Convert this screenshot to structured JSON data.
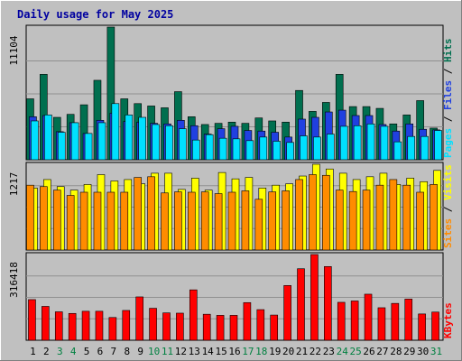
{
  "chart_data": {
    "type": "bar",
    "title": "Daily usage for May 2025",
    "categories": [
      "1",
      "2",
      "3",
      "4",
      "5",
      "6",
      "7",
      "8",
      "9",
      "10",
      "11",
      "12",
      "13",
      "14",
      "15",
      "16",
      "17",
      "18",
      "19",
      "20",
      "21",
      "22",
      "23",
      "24",
      "25",
      "26",
      "27",
      "28",
      "29",
      "30",
      "31"
    ],
    "weekend_days": [
      "3",
      "4",
      "10",
      "11",
      "17",
      "18",
      "24",
      "25",
      "31"
    ],
    "panels": [
      {
        "axis_label": "11104",
        "ylim": [
          0,
          11104
        ],
        "series": [
          {
            "name": "Hits",
            "color": "#006f4f",
            "values": [
              5100,
              7150,
              3550,
              3800,
              4600,
              6650,
              11104,
              5100,
              4700,
              4500,
              4350,
              5700,
              3600,
              2950,
              3050,
              3150,
              3050,
              3500,
              3250,
              3150,
              5800,
              4050,
              4800,
              7150,
              4450,
              4450,
              4300,
              3000,
              3750,
              4950,
              2650
            ]
          },
          {
            "name": "Files",
            "color": "#2040e0",
            "values": [
              3600,
              3700,
              2350,
              3100,
              2200,
              3300,
              3900,
              3200,
              3150,
              3050,
              3000,
              3300,
              2850,
              2150,
              2600,
              2800,
              2450,
              2400,
              2300,
              1900,
              3400,
              3550,
              4000,
              4150,
              3700,
              3700,
              2950,
              2400,
              3000,
              2550,
              2500
            ]
          },
          {
            "name": "Pages",
            "color": "#00e0ff",
            "values": [
              3250,
              3750,
              2300,
              3100,
              2200,
              3100,
              4700,
              3750,
              3550,
              2950,
              2850,
              2600,
              1650,
              2100,
              1800,
              1750,
              1600,
              1900,
              1550,
              1450,
              2000,
              1900,
              2150,
              2800,
              2850,
              3000,
              2800,
              1500,
              1950,
              1950,
              2450
            ]
          }
        ]
      },
      {
        "axis_label": "1217",
        "ylim": [
          0,
          1217
        ],
        "series": [
          {
            "name": "Visits",
            "color": "#ffff00",
            "values": [
              880,
              1000,
              900,
              850,
              930,
              1070,
              980,
              1000,
              940,
              1090,
              1090,
              860,
              1020,
              850,
              1100,
              1010,
              1030,
              880,
              920,
              940,
              1050,
              1217,
              1150,
              1090,
              1000,
              1040,
              1090,
              930,
              1020,
              970,
              1130
            ]
          },
          {
            "name": "Sites",
            "color": "#ff8c00",
            "values": [
              920,
              900,
              850,
              775,
              820,
              820,
              820,
              820,
              1030,
              1040,
              810,
              825,
              820,
              825,
              800,
              820,
              840,
              720,
              825,
              840,
              1000,
              1070,
              1060,
              850,
              830,
              850,
              920,
              1000,
              920,
              820,
              930
            ]
          }
        ]
      },
      {
        "axis_label": "316418",
        "ylim": [
          0,
          316418
        ],
        "series": [
          {
            "name": "KBytes",
            "color": "#ff0000",
            "values": [
              150000,
              125000,
              105000,
              99000,
              107000,
              107000,
              84000,
              110000,
              160000,
              118000,
              101000,
              100000,
              186000,
              96000,
              92000,
              92000,
              139000,
              113000,
              93000,
              202000,
              264000,
              316418,
              272000,
              140000,
              145000,
              170000,
              120000,
              136000,
              152000,
              97000,
              104000
            ]
          }
        ]
      }
    ],
    "right_labels": [
      [
        {
          "text": "Pages",
          "color": "#00e0ff"
        },
        {
          "text": " / ",
          "color": "#000000"
        },
        {
          "text": "Files",
          "color": "#2040e0"
        },
        {
          "text": " / ",
          "color": "#000000"
        },
        {
          "text": "Hits",
          "color": "#006f4f"
        }
      ],
      [
        {
          "text": "Sites",
          "color": "#ff8c00"
        },
        {
          "text": " / ",
          "color": "#000000"
        },
        {
          "text": "Visits",
          "color": "#ffff00"
        }
      ],
      [
        {
          "text": "KBytes",
          "color": "#ff0000"
        }
      ]
    ],
    "colors": {
      "title": "#0000a0",
      "weekend_label": "#008040",
      "weekday_label": "#000000",
      "panel_bg": "#c0c0c0"
    }
  }
}
